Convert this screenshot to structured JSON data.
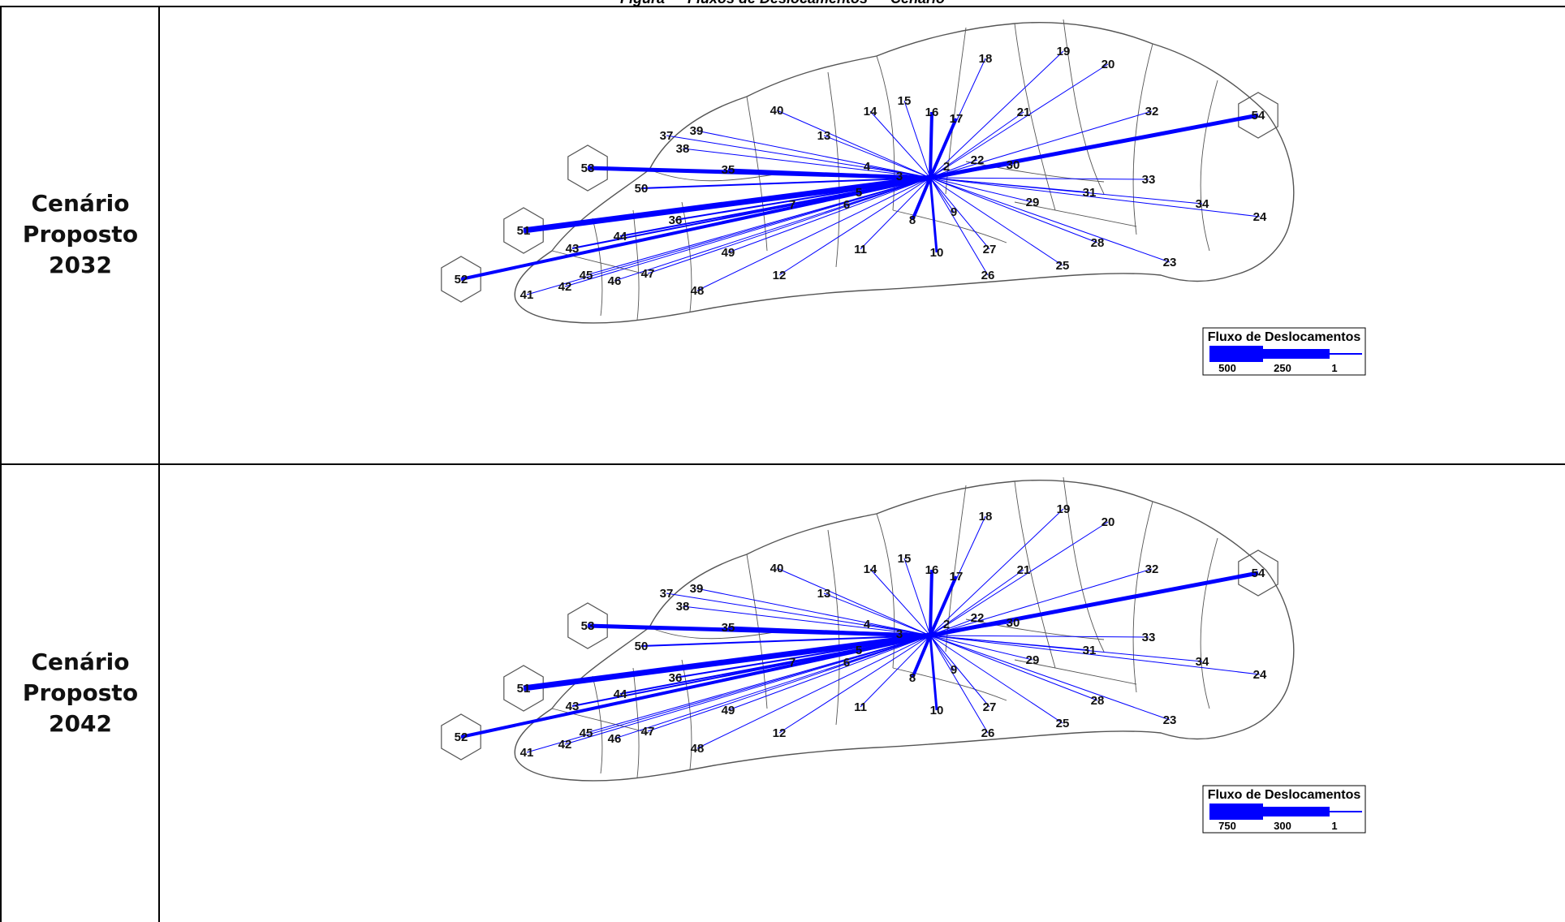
{
  "title": "Figura — Fluxos de Deslocamentos — Cenário",
  "rows": [
    {
      "label_lines": [
        "Cenário",
        "Proposto",
        "2032"
      ],
      "legend": {
        "title": "Fluxo de Deslocamentos",
        "ticks": [
          "500",
          "250",
          "1"
        ]
      }
    },
    {
      "label_lines": [
        "Cenário",
        "Proposto",
        "2042"
      ],
      "legend": {
        "title": "Fluxo de Deslocamentos",
        "ticks": [
          "750",
          "300",
          "1"
        ]
      }
    }
  ],
  "flow_color": "#0000ff",
  "map_outline_color": "#555555",
  "zones": [
    "2",
    "3",
    "4",
    "5",
    "6",
    "7",
    "8",
    "9",
    "10",
    "11",
    "12",
    "13",
    "14",
    "15",
    "16",
    "17",
    "18",
    "19",
    "20",
    "21",
    "22",
    "23",
    "24",
    "25",
    "26",
    "27",
    "28",
    "29",
    "30",
    "31",
    "32",
    "33",
    "34",
    "35",
    "36",
    "37",
    "38",
    "39",
    "40",
    "41",
    "42",
    "43",
    "44",
    "45",
    "46",
    "47",
    "48",
    "49",
    "50",
    "51",
    "52",
    "53",
    "54"
  ]
}
